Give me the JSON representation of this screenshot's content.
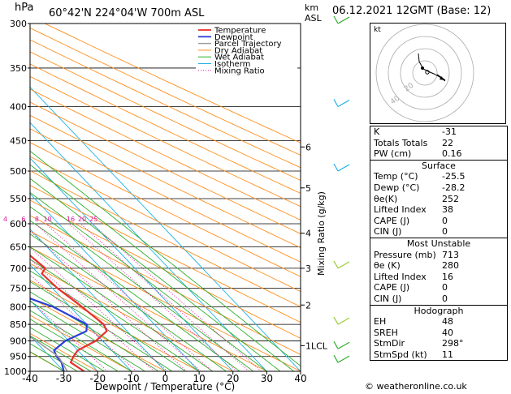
{
  "header": {
    "hpa_unit": "hPa",
    "location": "60°42'N  224°04'W  700m  ASL",
    "km_unit": "km",
    "asl_unit": "ASL",
    "date": "06.12.2021  12GMT  (Base: 12)"
  },
  "chart_data": {
    "type": "line",
    "xlabel": "Dewpoint / Temperature (°C)",
    "ylabel_right": "Mixing Ratio (g/kg)",
    "x_range": [
      -40,
      40
    ],
    "x_ticks": [
      "-40",
      "-30",
      "-20",
      "-10",
      "0",
      "10",
      "20",
      "30",
      "40"
    ],
    "y_range": [
      300,
      1000
    ],
    "y_scale": "log",
    "pressure_levels": [
      "300",
      "350",
      "400",
      "450",
      "500",
      "550",
      "600",
      "650",
      "700",
      "750",
      "800",
      "850",
      "900",
      "950",
      "1000"
    ],
    "km_ticks": [
      {
        "p": 460,
        "label": "6"
      },
      {
        "p": 530,
        "label": "5"
      },
      {
        "p": 620,
        "label": "4"
      },
      {
        "p": 700,
        "label": "3"
      },
      {
        "p": 795,
        "label": "2"
      },
      {
        "p": 915,
        "label": "1LCL"
      }
    ],
    "mixing_ratio_labels": [
      "1",
      "2",
      "3",
      "4",
      "6",
      "8",
      "10",
      "16",
      "20",
      "25"
    ],
    "legend": [
      "Temperature",
      "Dewpoint",
      "Parcel Trajectory",
      "Dry Adiabat",
      "Wet Adiabat",
      "Isotherm",
      "Mixing Ratio"
    ],
    "colors": {
      "temperature": "#e8312e",
      "dewpoint": "#2b3fd8",
      "parcel": "#9a9a9a",
      "dry_adiabat": "#ff8c1a",
      "wet_adiabat": "#2fb02f",
      "isotherm": "#20b2e6",
      "mixing_ratio": "#e0159a"
    },
    "series": [
      {
        "name": "Temperature",
        "points": [
          [
            1000,
            -24
          ],
          [
            970,
            -25.5
          ],
          [
            950,
            -23
          ],
          [
            930,
            -20
          ],
          [
            900,
            -12
          ],
          [
            870,
            -6
          ],
          [
            850,
            -5
          ],
          [
            800,
            -6.5
          ],
          [
            750,
            -8.5
          ],
          [
            713,
            -9
          ],
          [
            700,
            -6.5
          ],
          [
            650,
            -8
          ],
          [
            600,
            -10
          ],
          [
            550,
            -13
          ],
          [
            500,
            -17
          ],
          [
            450,
            -24
          ],
          [
            400,
            -32
          ],
          [
            350,
            -39.5
          ],
          [
            300,
            -46
          ]
        ]
      },
      {
        "name": "Dewpoint",
        "points": [
          [
            1000,
            -30
          ],
          [
            970,
            -28.2
          ],
          [
            950,
            -28
          ],
          [
            930,
            -27
          ],
          [
            900,
            -21
          ],
          [
            870,
            -12
          ],
          [
            850,
            -10
          ],
          [
            800,
            -15
          ],
          [
            750,
            -25
          ],
          [
            713,
            -33
          ],
          [
            700,
            -36
          ],
          [
            650,
            -44
          ],
          [
            600,
            -37
          ],
          [
            550,
            -29
          ],
          [
            500,
            -35
          ],
          [
            450,
            -37
          ],
          [
            400,
            -40
          ],
          [
            350,
            -46
          ],
          [
            300,
            -53
          ]
        ]
      },
      {
        "name": "Parcel Trajectory",
        "points": [
          [
            1000,
            -29
          ],
          [
            970,
            -28
          ],
          [
            950,
            -27.5
          ],
          [
            900,
            -29.5
          ],
          [
            850,
            -33
          ],
          [
            800,
            -37
          ],
          [
            750,
            -41
          ],
          [
            700,
            -45
          ],
          [
            650,
            -50
          ],
          [
            600,
            -55
          ],
          [
            550,
            -60
          ]
        ]
      }
    ],
    "wind_barbs": [
      {
        "p": 300,
        "color": "#2fb02f"
      },
      {
        "p": 400,
        "color": "#20b2e6"
      },
      {
        "p": 500,
        "color": "#20b2e6"
      },
      {
        "p": 700,
        "color": "#9acd32"
      },
      {
        "p": 850,
        "color": "#9acd32"
      },
      {
        "p": 925,
        "color": "#2fb02f"
      },
      {
        "p": 970,
        "color": "#2fb02f"
      }
    ]
  },
  "hodograph": {
    "unit": "kt",
    "rings": [
      "20",
      "40"
    ]
  },
  "indices": [
    {
      "label": "K",
      "value": "-31"
    },
    {
      "label": "Totals Totals",
      "value": "22"
    },
    {
      "label": "PW (cm)",
      "value": "0.16"
    }
  ],
  "surface": {
    "title": "Surface",
    "rows": [
      {
        "label": "Temp (°C)",
        "value": "-25.5"
      },
      {
        "label": "Dewp (°C)",
        "value": "-28.2"
      },
      {
        "label": "θe(K)",
        "value": "252"
      },
      {
        "label": "Lifted Index",
        "value": "38"
      },
      {
        "label": "CAPE (J)",
        "value": "0"
      },
      {
        "label": "CIN (J)",
        "value": "0"
      }
    ]
  },
  "most_unstable": {
    "title": "Most Unstable",
    "rows": [
      {
        "label": "Pressure (mb)",
        "value": "713"
      },
      {
        "label": "θe (K)",
        "value": "280"
      },
      {
        "label": "Lifted Index",
        "value": "16"
      },
      {
        "label": "CAPE (J)",
        "value": "0"
      },
      {
        "label": "CIN (J)",
        "value": "0"
      }
    ]
  },
  "hodograph_stats": {
    "title": "Hodograph",
    "rows": [
      {
        "label": "EH",
        "value": "48"
      },
      {
        "label": "SREH",
        "value": "40"
      },
      {
        "label": "StmDir",
        "value": "298°"
      },
      {
        "label": "StmSpd (kt)",
        "value": "11"
      }
    ]
  },
  "copyright": "© weatheronline.co.uk"
}
